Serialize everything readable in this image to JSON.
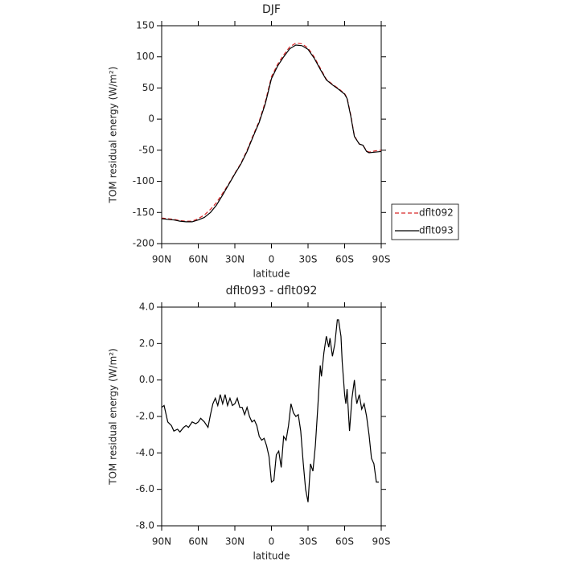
{
  "chart_data": [
    {
      "type": "line",
      "title": "DJF",
      "xlabel": "latitude",
      "ylabel": "TOM residual energy (W/m²)",
      "x": [
        90,
        85,
        80,
        75,
        70,
        65,
        60,
        55,
        50,
        45,
        40,
        35,
        30,
        25,
        20,
        15,
        10,
        5,
        0,
        -5,
        -10,
        -15,
        -20,
        -25,
        -30,
        -35,
        -40,
        -45,
        -50,
        -55,
        -60,
        -62,
        -65,
        -68,
        -72,
        -75,
        -78,
        -80,
        -85,
        -90
      ],
      "series": [
        {
          "name": "dflt092",
          "color": "#d62728",
          "style": "dashed",
          "values": [
            -159,
            -160,
            -161,
            -163,
            -164,
            -164,
            -160,
            -154,
            -145,
            -134,
            -119,
            -104,
            -87,
            -71,
            -50,
            -26,
            -3,
            28,
            68,
            88,
            103,
            116,
            122,
            121,
            114,
            100,
            82,
            64,
            56,
            49,
            41,
            34,
            7,
            -27,
            -40,
            -42,
            -51,
            -53,
            -51,
            -50
          ]
        },
        {
          "name": "dflt093",
          "color": "#000000",
          "style": "solid",
          "values": [
            -160,
            -161,
            -162,
            -164,
            -165,
            -165,
            -162,
            -158,
            -150,
            -138,
            -122,
            -105,
            -88,
            -72,
            -52,
            -28,
            -5,
            25,
            65,
            85,
            100,
            113,
            119,
            118,
            112,
            98,
            80,
            63,
            55,
            48,
            40,
            33,
            5,
            -28,
            -40,
            -42,
            -52,
            -54,
            -53,
            -52
          ]
        }
      ],
      "xlim": [
        90,
        -90
      ],
      "xticks": [
        {
          "value": 90,
          "label": "90N"
        },
        {
          "value": 60,
          "label": "60N"
        },
        {
          "value": 30,
          "label": "30N"
        },
        0,
        {
          "value": -30,
          "label": "30S"
        },
        {
          "value": -60,
          "label": "60S"
        },
        {
          "value": -90,
          "label": "90S"
        }
      ],
      "ylim": [
        -200,
        150
      ],
      "yticks": [
        -200,
        -150,
        -100,
        -50,
        0,
        50,
        100,
        150
      ],
      "legend": "right"
    },
    {
      "type": "line",
      "title": "dflt093 - dflt092",
      "xlabel": "latitude",
      "ylabel": "TOM residual energy (W/m²)",
      "x": [
        90,
        88,
        85,
        82,
        80,
        77,
        75,
        72,
        70,
        68,
        65,
        62,
        60,
        58,
        55,
        52,
        50,
        48,
        46,
        44,
        42,
        40,
        38,
        36,
        34,
        32,
        30,
        28,
        26,
        24,
        22,
        20,
        18,
        16,
        14,
        12,
        10,
        8,
        6,
        4,
        2,
        0,
        -2,
        -4,
        -6,
        -8,
        -10,
        -12,
        -14,
        -16,
        -18,
        -20,
        -22,
        -24,
        -26,
        -28,
        -30,
        -32,
        -34,
        -36,
        -38,
        -40,
        -41,
        -43,
        -45,
        -47,
        -48,
        -50,
        -52,
        -54,
        -55,
        -57,
        -58,
        -60,
        -61,
        -62,
        -64,
        -66,
        -68,
        -69,
        -70,
        -72,
        -74,
        -76,
        -78,
        -80,
        -82,
        -84,
        -86,
        -88
      ],
      "series": [
        {
          "color": "#000000",
          "style": "solid",
          "values": [
            -1.5,
            -1.4,
            -2.3,
            -2.5,
            -2.8,
            -2.7,
            -2.85,
            -2.6,
            -2.5,
            -2.6,
            -2.3,
            -2.4,
            -2.3,
            -2.1,
            -2.3,
            -2.6,
            -1.9,
            -1.3,
            -1.0,
            -1.4,
            -0.8,
            -1.3,
            -0.8,
            -1.4,
            -1.0,
            -1.4,
            -1.3,
            -1.0,
            -1.5,
            -1.5,
            -1.9,
            -1.5,
            -2.0,
            -2.3,
            -2.2,
            -2.5,
            -3.1,
            -3.3,
            -3.2,
            -3.6,
            -4.2,
            -5.6,
            -5.5,
            -4.1,
            -3.9,
            -4.8,
            -3.1,
            -3.3,
            -2.5,
            -1.3,
            -1.8,
            -2.0,
            -1.9,
            -2.8,
            -4.5,
            -6.0,
            -6.7,
            -4.6,
            -5.0,
            -3.6,
            -1.5,
            0.8,
            0.2,
            1.5,
            2.4,
            1.8,
            2.3,
            1.3,
            2.0,
            3.3,
            3.3,
            2.4,
            1.0,
            -0.8,
            -1.3,
            -0.5,
            -2.8,
            -1.0,
            0.0,
            -0.8,
            -1.3,
            -0.8,
            -1.6,
            -1.3,
            -2.0,
            -3.0,
            -4.3,
            -4.6,
            -5.6,
            -5.6
          ]
        }
      ],
      "xlim": [
        90,
        -90
      ],
      "xticks": [
        {
          "value": 90,
          "label": "90N"
        },
        {
          "value": 60,
          "label": "60N"
        },
        {
          "value": 30,
          "label": "30N"
        },
        0,
        {
          "value": -30,
          "label": "30S"
        },
        {
          "value": -60,
          "label": "60S"
        },
        {
          "value": -90,
          "label": "90S"
        }
      ],
      "ylim": [
        -8,
        4
      ],
      "yticks": [
        {
          "value": -8,
          "label": "-8.0"
        },
        {
          "value": -6,
          "label": "-6.0"
        },
        {
          "value": -4,
          "label": "-4.0"
        },
        {
          "value": -2,
          "label": "-2.0"
        },
        {
          "value": 0,
          "label": "0.0"
        },
        {
          "value": 2,
          "label": "2.0"
        },
        {
          "value": 4,
          "label": "4.0"
        }
      ]
    }
  ]
}
